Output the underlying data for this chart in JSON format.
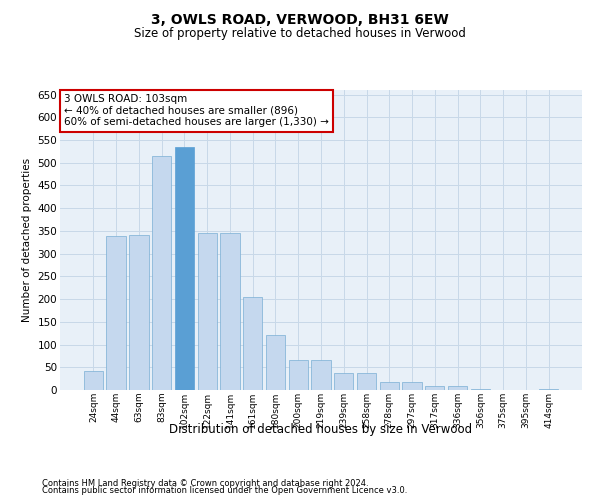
{
  "title": "3, OWLS ROAD, VERWOOD, BH31 6EW",
  "subtitle": "Size of property relative to detached houses in Verwood",
  "xlabel": "Distribution of detached houses by size in Verwood",
  "ylabel": "Number of detached properties",
  "footer1": "Contains HM Land Registry data © Crown copyright and database right 2024.",
  "footer2": "Contains public sector information licensed under the Open Government Licence v3.0.",
  "bar_labels": [
    "24sqm",
    "44sqm",
    "63sqm",
    "83sqm",
    "102sqm",
    "122sqm",
    "141sqm",
    "161sqm",
    "180sqm",
    "200sqm",
    "219sqm",
    "239sqm",
    "258sqm",
    "278sqm",
    "297sqm",
    "317sqm",
    "336sqm",
    "356sqm",
    "375sqm",
    "395sqm",
    "414sqm"
  ],
  "bar_values": [
    42,
    338,
    340,
    515,
    535,
    345,
    345,
    205,
    120,
    65,
    65,
    38,
    38,
    18,
    18,
    9,
    8,
    2,
    0,
    0,
    2
  ],
  "bar_color": "#c5d8ee",
  "bar_edge_color": "#7aafd4",
  "highlight_bar_index": 4,
  "highlight_bar_color": "#5a9fd4",
  "ylim": [
    0,
    660
  ],
  "yticks": [
    0,
    50,
    100,
    150,
    200,
    250,
    300,
    350,
    400,
    450,
    500,
    550,
    600,
    650
  ],
  "annotation_text": "3 OWLS ROAD: 103sqm\n← 40% of detached houses are smaller (896)\n60% of semi-detached houses are larger (1,330) →",
  "annotation_box_color": "#ffffff",
  "annotation_box_edge_color": "#cc0000",
  "grid_color": "#c8d8e8",
  "background_color": "#e8f0f8",
  "title_fontsize": 10,
  "subtitle_fontsize": 8.5,
  "xlabel_fontsize": 8.5,
  "ylabel_fontsize": 7.5,
  "annotation_fontsize": 7.5,
  "footer_fontsize": 6,
  "ytick_fontsize": 7.5,
  "xtick_fontsize": 6.5
}
